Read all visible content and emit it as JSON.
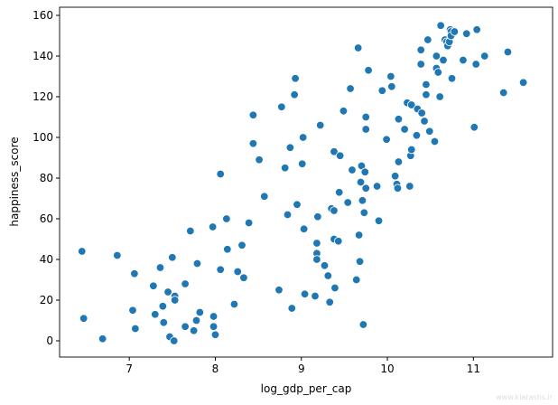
{
  "chart_data": {
    "type": "scatter",
    "x_label": "log_gdp_per_cap",
    "y_label": "happiness_score",
    "color": "#1f77b4",
    "xlim": [
      6.19,
      11.92
    ],
    "xticks": [
      7,
      8,
      9,
      10,
      11
    ],
    "ylim": [
      -8,
      164
    ],
    "yticks": [
      0,
      20,
      40,
      60,
      80,
      100,
      120,
      140,
      160
    ],
    "x": [
      6.45,
      6.47,
      6.69,
      6.86,
      7.04,
      7.06,
      7.07,
      7.28,
      7.3,
      7.36,
      7.39,
      7.4,
      7.45,
      7.47,
      7.5,
      7.52,
      7.53,
      7.53,
      7.65,
      7.65,
      7.71,
      7.75,
      7.78,
      7.79,
      7.82,
      7.97,
      7.98,
      7.98,
      8.0,
      8.06,
      8.06,
      8.13,
      8.14,
      8.22,
      8.26,
      8.31,
      8.33,
      8.39,
      8.44,
      8.44,
      8.51,
      8.57,
      8.74,
      8.77,
      8.81,
      8.84,
      8.87,
      8.89,
      8.92,
      8.93,
      8.95,
      9.01,
      9.02,
      9.03,
      9.04,
      9.16,
      9.18,
      9.18,
      9.18,
      9.19,
      9.22,
      9.27,
      9.31,
      9.33,
      9.35,
      9.38,
      9.38,
      9.38,
      9.39,
      9.43,
      9.45,
      9.44,
      9.49,
      9.54,
      9.57,
      9.59,
      9.64,
      9.66,
      9.67,
      9.68,
      9.69,
      9.7,
      9.71,
      9.72,
      9.73,
      9.74,
      9.75,
      9.75,
      9.75,
      9.78,
      9.88,
      9.9,
      9.94,
      9.99,
      10.04,
      10.05,
      10.09,
      10.11,
      10.12,
      10.13,
      10.13,
      10.2,
      10.23,
      10.26,
      10.27,
      10.28,
      10.28,
      10.34,
      10.35,
      10.39,
      10.39,
      10.4,
      10.43,
      10.45,
      10.45,
      10.47,
      10.49,
      10.55,
      10.57,
      10.57,
      10.59,
      10.61,
      10.62,
      10.65,
      10.67,
      10.69,
      10.7,
      10.72,
      10.73,
      10.74,
      10.74,
      10.75,
      10.78,
      10.88,
      10.92,
      11.01,
      11.03,
      11.04,
      11.13,
      11.35,
      11.4,
      11.58
    ],
    "values": [
      44,
      11,
      1,
      42,
      15,
      33,
      6,
      27,
      13,
      36,
      17,
      9,
      24,
      2,
      41,
      0,
      22,
      20,
      7,
      28,
      54,
      5,
      10,
      38,
      14,
      56,
      12,
      7,
      3,
      82,
      35,
      60,
      45,
      18,
      34,
      47,
      31,
      58,
      111,
      97,
      89,
      71,
      25,
      115,
      85,
      62,
      95,
      16,
      121,
      129,
      67,
      87,
      100,
      55,
      23,
      22,
      48,
      43,
      40,
      61,
      106,
      37,
      32,
      19,
      65,
      64,
      93,
      50,
      26,
      49,
      91,
      73,
      113,
      68,
      124,
      84,
      30,
      144,
      52,
      39,
      78,
      86,
      69,
      8,
      63,
      83,
      75,
      110,
      104,
      133,
      76,
      59,
      123,
      99,
      130,
      125,
      81,
      77,
      75,
      88,
      109,
      104,
      117,
      76,
      91,
      94,
      116,
      101,
      114,
      143,
      136,
      112,
      108,
      126,
      121,
      148,
      103,
      98,
      140,
      134,
      132,
      120,
      155,
      138,
      148,
      147,
      145,
      147,
      153,
      152,
      150,
      129,
      152,
      138,
      151,
      105,
      136,
      153,
      140,
      122,
      142,
      127
    ],
    "watermark": "www.kiarashs.ir"
  }
}
